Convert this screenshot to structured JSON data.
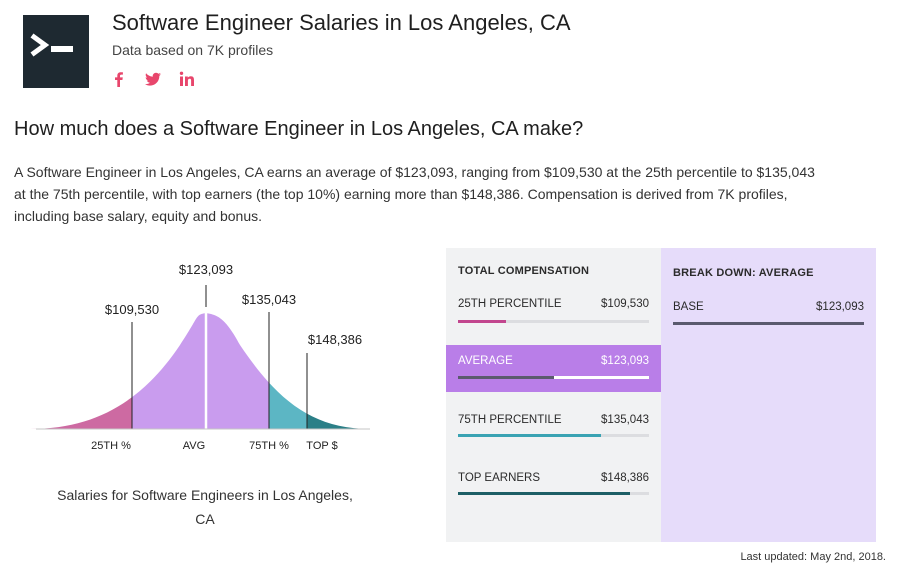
{
  "header": {
    "title": "Software Engineer Salaries in Los Angeles, CA",
    "subtitle": "Data based on 7K profiles",
    "social_icons": [
      "facebook-icon",
      "twitter-icon",
      "linkedin-icon"
    ],
    "accent_color": "#e8466c"
  },
  "question": "How much does a Software Engineer in Los Angeles, CA make?",
  "description_lines": [
    "A Software Engineer in Los Angeles, CA earns an average of $123,093, ranging from $109,530 at the 25th percentile to $135,043",
    "at the 75th percentile, with top earners (the top 10%) earning more than $148,386. Compensation is derived from 7K profiles,",
    "including base salary, equity and bonus."
  ],
  "distribution": {
    "values": [
      "$109,530",
      "$123,093",
      "$135,043",
      "$148,386"
    ],
    "axis_labels": [
      "25TH %",
      "AVG",
      "75TH %",
      "TOP $"
    ],
    "caption_lines": [
      "Salaries for Software Engineers in Los Angeles,",
      "CA"
    ],
    "colors": {
      "low": "#cd6aa2",
      "mid": "#c99cee",
      "high": "#5cb6c4",
      "top": "#2b7f87"
    }
  },
  "total_compensation": {
    "heading": "TOTAL COMPENSATION",
    "rows": [
      {
        "label": "25TH PERCENTILE",
        "value": "$109,530",
        "fill_fraction": 0.25,
        "color": "#c2468e",
        "active": false
      },
      {
        "label": "AVERAGE",
        "value": "$123,093",
        "fill_fraction": 0.5,
        "color": "#5a5a6e",
        "active": true
      },
      {
        "label": "75TH PERCENTILE",
        "value": "$135,043",
        "fill_fraction": 0.75,
        "color": "#3aa3b3",
        "active": false
      },
      {
        "label": "TOP EARNERS",
        "value": "$148,386",
        "fill_fraction": 0.9,
        "color": "#1d5f66",
        "active": false
      }
    ]
  },
  "breakdown": {
    "heading": "BREAK DOWN: AVERAGE",
    "base_label": "BASE",
    "base_value": "$123,093",
    "bar_color": "#5a5a6e"
  },
  "last_updated": "Last updated: May 2nd, 2018."
}
